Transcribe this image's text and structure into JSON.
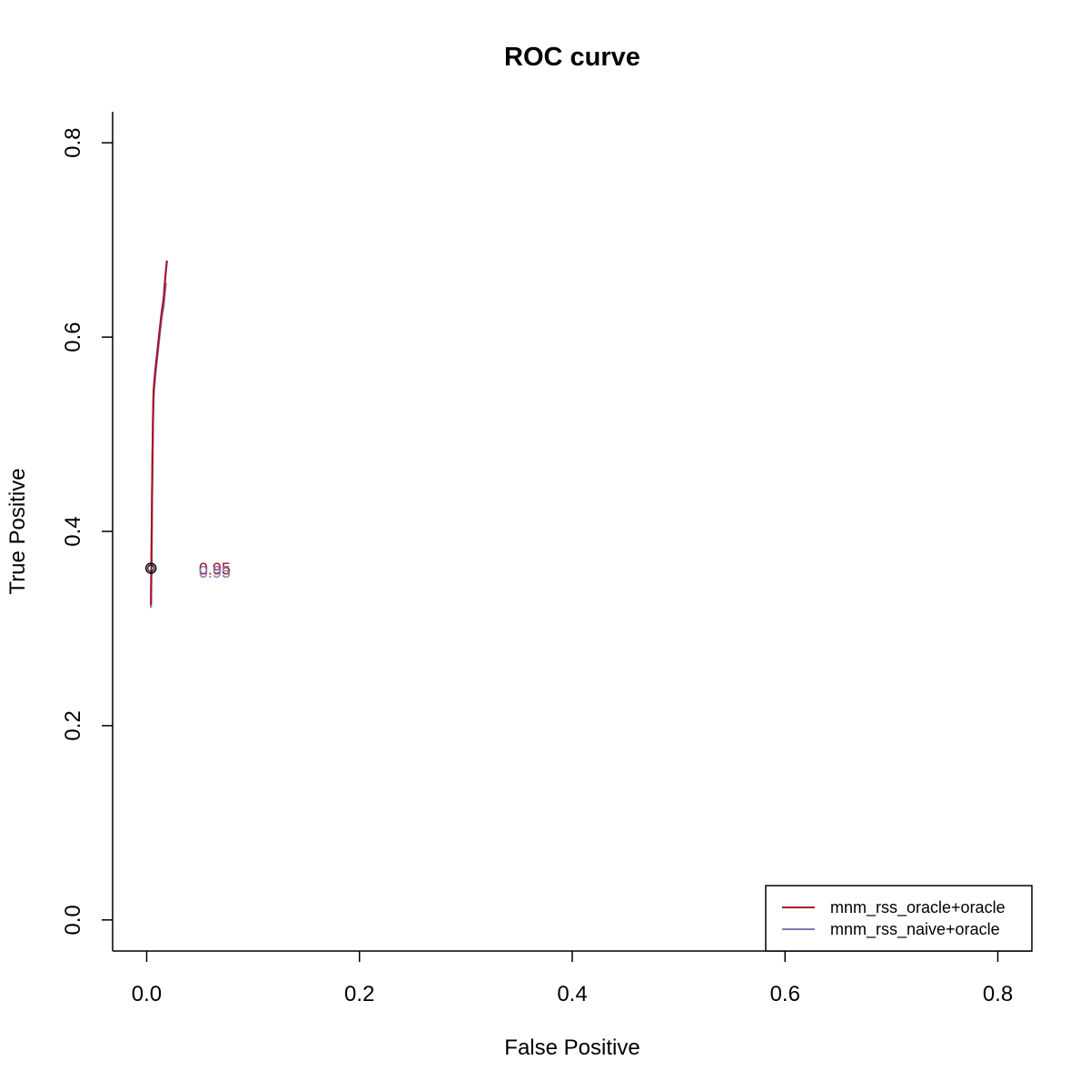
{
  "chart_data": {
    "type": "line",
    "title": "ROC curve",
    "xlabel": "False Positive",
    "ylabel": "True Positive",
    "xlim": [
      -0.032,
      0.832
    ],
    "ylim": [
      -0.032,
      0.832
    ],
    "x_ticks": [
      0.0,
      0.2,
      0.4,
      0.6,
      0.8
    ],
    "x_tick_labels": [
      "0.0",
      "0.2",
      "0.4",
      "0.6",
      "0.8"
    ],
    "y_ticks": [
      0.0,
      0.2,
      0.4,
      0.6,
      0.8
    ],
    "y_tick_labels": [
      "0.0",
      "0.2",
      "0.4",
      "0.6",
      "0.8"
    ],
    "grid": false,
    "legend_position": "bottom-right",
    "series": [
      {
        "name": "mnm_rss_oracle+oracle",
        "color": "#a3152e",
        "points": [
          [
            0.004,
            0.325
          ],
          [
            0.0045,
            0.38
          ],
          [
            0.005,
            0.43
          ],
          [
            0.0055,
            0.48
          ],
          [
            0.006,
            0.52
          ],
          [
            0.0065,
            0.545
          ],
          [
            0.008,
            0.565
          ],
          [
            0.01,
            0.585
          ],
          [
            0.012,
            0.605
          ],
          [
            0.014,
            0.625
          ],
          [
            0.016,
            0.64
          ],
          [
            0.017,
            0.655
          ],
          [
            0.018,
            0.668
          ],
          [
            0.019,
            0.678
          ]
        ]
      },
      {
        "name": "mnm_rss_naive+oracle",
        "color": "#8878b0",
        "points": [
          [
            0.004,
            0.322
          ],
          [
            0.0045,
            0.375
          ],
          [
            0.005,
            0.425
          ],
          [
            0.0055,
            0.475
          ],
          [
            0.006,
            0.515
          ],
          [
            0.0065,
            0.54
          ],
          [
            0.008,
            0.56
          ],
          [
            0.01,
            0.58
          ],
          [
            0.012,
            0.6
          ],
          [
            0.014,
            0.62
          ],
          [
            0.016,
            0.632
          ],
          [
            0.017,
            0.645
          ],
          [
            0.018,
            0.655
          ]
        ]
      }
    ],
    "threshold_marker": {
      "x": 0.004,
      "y": 0.362
    },
    "threshold_labels": [
      {
        "text": "0.95",
        "color": "#a3152e",
        "x": 0.064,
        "y": 0.362
      },
      {
        "text": "0.95",
        "color": "#8878b0",
        "x": 0.064,
        "y": 0.359
      }
    ]
  }
}
